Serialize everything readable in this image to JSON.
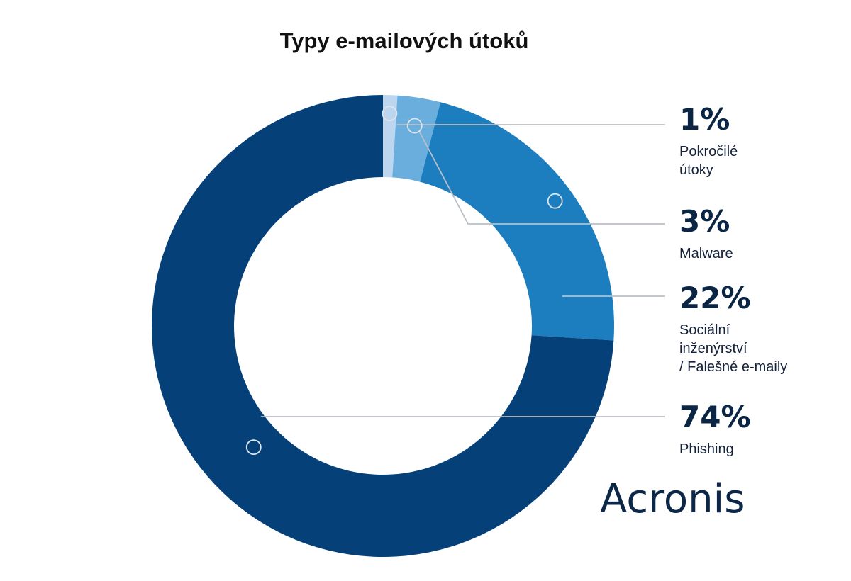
{
  "chart_data": {
    "type": "pie",
    "title": "Typy e-mailových útoků",
    "slices": [
      {
        "label": "Pokročilé útoky",
        "label_lines": [
          "Pokročilé",
          "útoky"
        ],
        "value": 1,
        "display": "1%",
        "color": "#bcd6ef"
      },
      {
        "label": "Malware",
        "label_lines": [
          "Malware"
        ],
        "value": 3,
        "display": "3%",
        "color": "#6aaede"
      },
      {
        "label": "Sociální inženýrství / Falešné e-maily",
        "label_lines": [
          "Sociální",
          "inženýrství",
          "/ Falešné e-maily"
        ],
        "value": 22,
        "display": "22%",
        "color": "#1c7dbf"
      },
      {
        "label": "Phishing",
        "label_lines": [
          "Phishing"
        ],
        "value": 74,
        "display": "74%",
        "color": "#064079"
      }
    ],
    "legend": "right"
  },
  "brand": {
    "logo_text": "Acronis"
  }
}
